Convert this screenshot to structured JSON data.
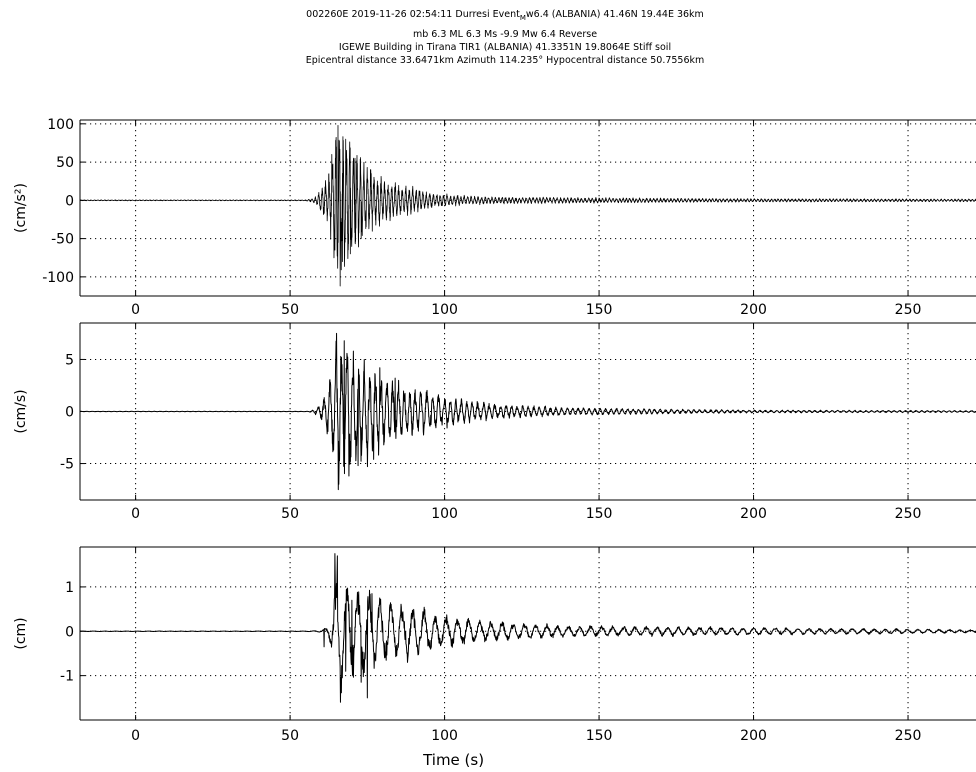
{
  "header": {
    "line1_pre": "002260E 2019-11-26 02:54:11 Durresi Event",
    "line1_sub": "M",
    "line1_post": "w6.4 (ALBANIA) 41.46N 19.44E 36km",
    "line2": "mb 6.3 ML 6.3 Ms -9.9 Mw 6.4 Reverse",
    "line3": "IGEWE Building in Tirana TIR1 (ALBANIA) 41.3351N 19.8064E Stiff soil",
    "line4": "Epicentral distance 33.6471km Azimuth 114.235° Hypocentral distance 50.7556km"
  },
  "chart_data": [
    {
      "type": "line",
      "ylabel": "(cm/s²)",
      "xlabel": "",
      "xlim": [
        -18,
        272
      ],
      "ylim": [
        -125,
        105
      ],
      "xticks": [
        0,
        50,
        100,
        150,
        200,
        250
      ],
      "yticks": [
        100,
        50,
        0,
        -50,
        -100
      ],
      "grid": true,
      "series": [
        {
          "kind": "acceleration",
          "color": "#000000",
          "envelope": [
            [
              0,
              0.5
            ],
            [
              55,
              0.5
            ],
            [
              58,
              3
            ],
            [
              60,
              15
            ],
            [
              62,
              30
            ],
            [
              64,
              55
            ],
            [
              65,
              95
            ],
            [
              66,
              112
            ],
            [
              67,
              85
            ],
            [
              69,
              75
            ],
            [
              72,
              55
            ],
            [
              75,
              40
            ],
            [
              80,
              28
            ],
            [
              85,
              20
            ],
            [
              90,
              15
            ],
            [
              95,
              10
            ],
            [
              100,
              7
            ],
            [
              110,
              5
            ],
            [
              120,
              4
            ],
            [
              150,
              3
            ],
            [
              200,
              2
            ],
            [
              272,
              1.5
            ]
          ],
          "peaks": [
            [
              65.5,
              98
            ],
            [
              66.2,
              -112
            ],
            [
              67,
              -80
            ],
            [
              68,
              80
            ],
            [
              69.5,
              -70
            ],
            [
              71,
              55
            ],
            [
              73,
              -50
            ],
            [
              76,
              40
            ],
            [
              63.5,
              60
            ],
            [
              64.5,
              -65
            ]
          ]
        }
      ]
    },
    {
      "type": "line",
      "ylabel": "(cm/s)",
      "xlabel": "",
      "xlim": [
        -18,
        272
      ],
      "ylim": [
        -8.5,
        8.5
      ],
      "xticks": [
        0,
        50,
        100,
        150,
        200,
        250
      ],
      "yticks": [
        5,
        0,
        -5
      ],
      "grid": true,
      "series": [
        {
          "kind": "velocity",
          "color": "#000000",
          "envelope": [
            [
              0,
              0.02
            ],
            [
              56,
              0.02
            ],
            [
              58,
              0.2
            ],
            [
              60,
              0.8
            ],
            [
              62,
              2.2
            ],
            [
              64,
              4.5
            ],
            [
              65,
              7.5
            ],
            [
              66,
              7.0
            ],
            [
              68,
              5.8
            ],
            [
              70,
              5.2
            ],
            [
              72,
              5
            ],
            [
              75,
              4.5
            ],
            [
              78,
              3.8
            ],
            [
              82,
              3.0
            ],
            [
              88,
              2.3
            ],
            [
              95,
              1.8
            ],
            [
              100,
              1.4
            ],
            [
              110,
              0.9
            ],
            [
              120,
              0.6
            ],
            [
              140,
              0.35
            ],
            [
              160,
              0.25
            ],
            [
              200,
              0.12
            ],
            [
              272,
              0.08
            ]
          ],
          "peaks": [
            [
              65,
              7.5
            ],
            [
              65.6,
              -7.5
            ],
            [
              67.5,
              6.8
            ],
            [
              69,
              -6.2
            ],
            [
              70.5,
              5.8
            ],
            [
              72,
              -5.2
            ],
            [
              75,
              -5.3
            ],
            [
              74,
              5.0
            ],
            [
              77,
              -4.6
            ],
            [
              79,
              4.2
            ],
            [
              84,
              3.2
            ]
          ]
        }
      ]
    },
    {
      "type": "line",
      "ylabel": "(cm)",
      "xlabel": "Time (s)",
      "xlim": [
        -18,
        272
      ],
      "ylim": [
        -2.0,
        1.9
      ],
      "xticks": [
        0,
        50,
        100,
        150,
        200,
        250
      ],
      "yticks": [
        1,
        0,
        -1
      ],
      "grid": true,
      "series": [
        {
          "kind": "displacement",
          "color": "#000000",
          "envelope": [
            [
              0,
              0.005
            ],
            [
              55,
              0.005
            ],
            [
              60,
              0.02
            ],
            [
              62,
              0.1
            ],
            [
              64,
              0.6
            ],
            [
              65,
              1.75
            ],
            [
              66,
              1.6
            ],
            [
              67,
              1.2
            ],
            [
              70,
              1.0
            ],
            [
              75,
              0.9
            ],
            [
              80,
              0.7
            ],
            [
              90,
              0.55
            ],
            [
              100,
              0.35
            ],
            [
              110,
              0.25
            ],
            [
              120,
              0.2
            ],
            [
              140,
              0.12
            ],
            [
              170,
              0.1
            ],
            [
              200,
              0.08
            ],
            [
              250,
              0.05
            ],
            [
              272,
              0.03
            ]
          ],
          "peaks": [
            [
              61,
              -0.35
            ],
            [
              64.5,
              1.75
            ],
            [
              65.3,
              1.7
            ],
            [
              66.3,
              -1.6
            ],
            [
              68,
              -0.9
            ],
            [
              70,
              0.7
            ],
            [
              73,
              -1.15
            ],
            [
              75,
              -1.5
            ],
            [
              76.5,
              0.85
            ],
            [
              79,
              0.75
            ],
            [
              86,
              0.55
            ]
          ]
        }
      ]
    }
  ]
}
